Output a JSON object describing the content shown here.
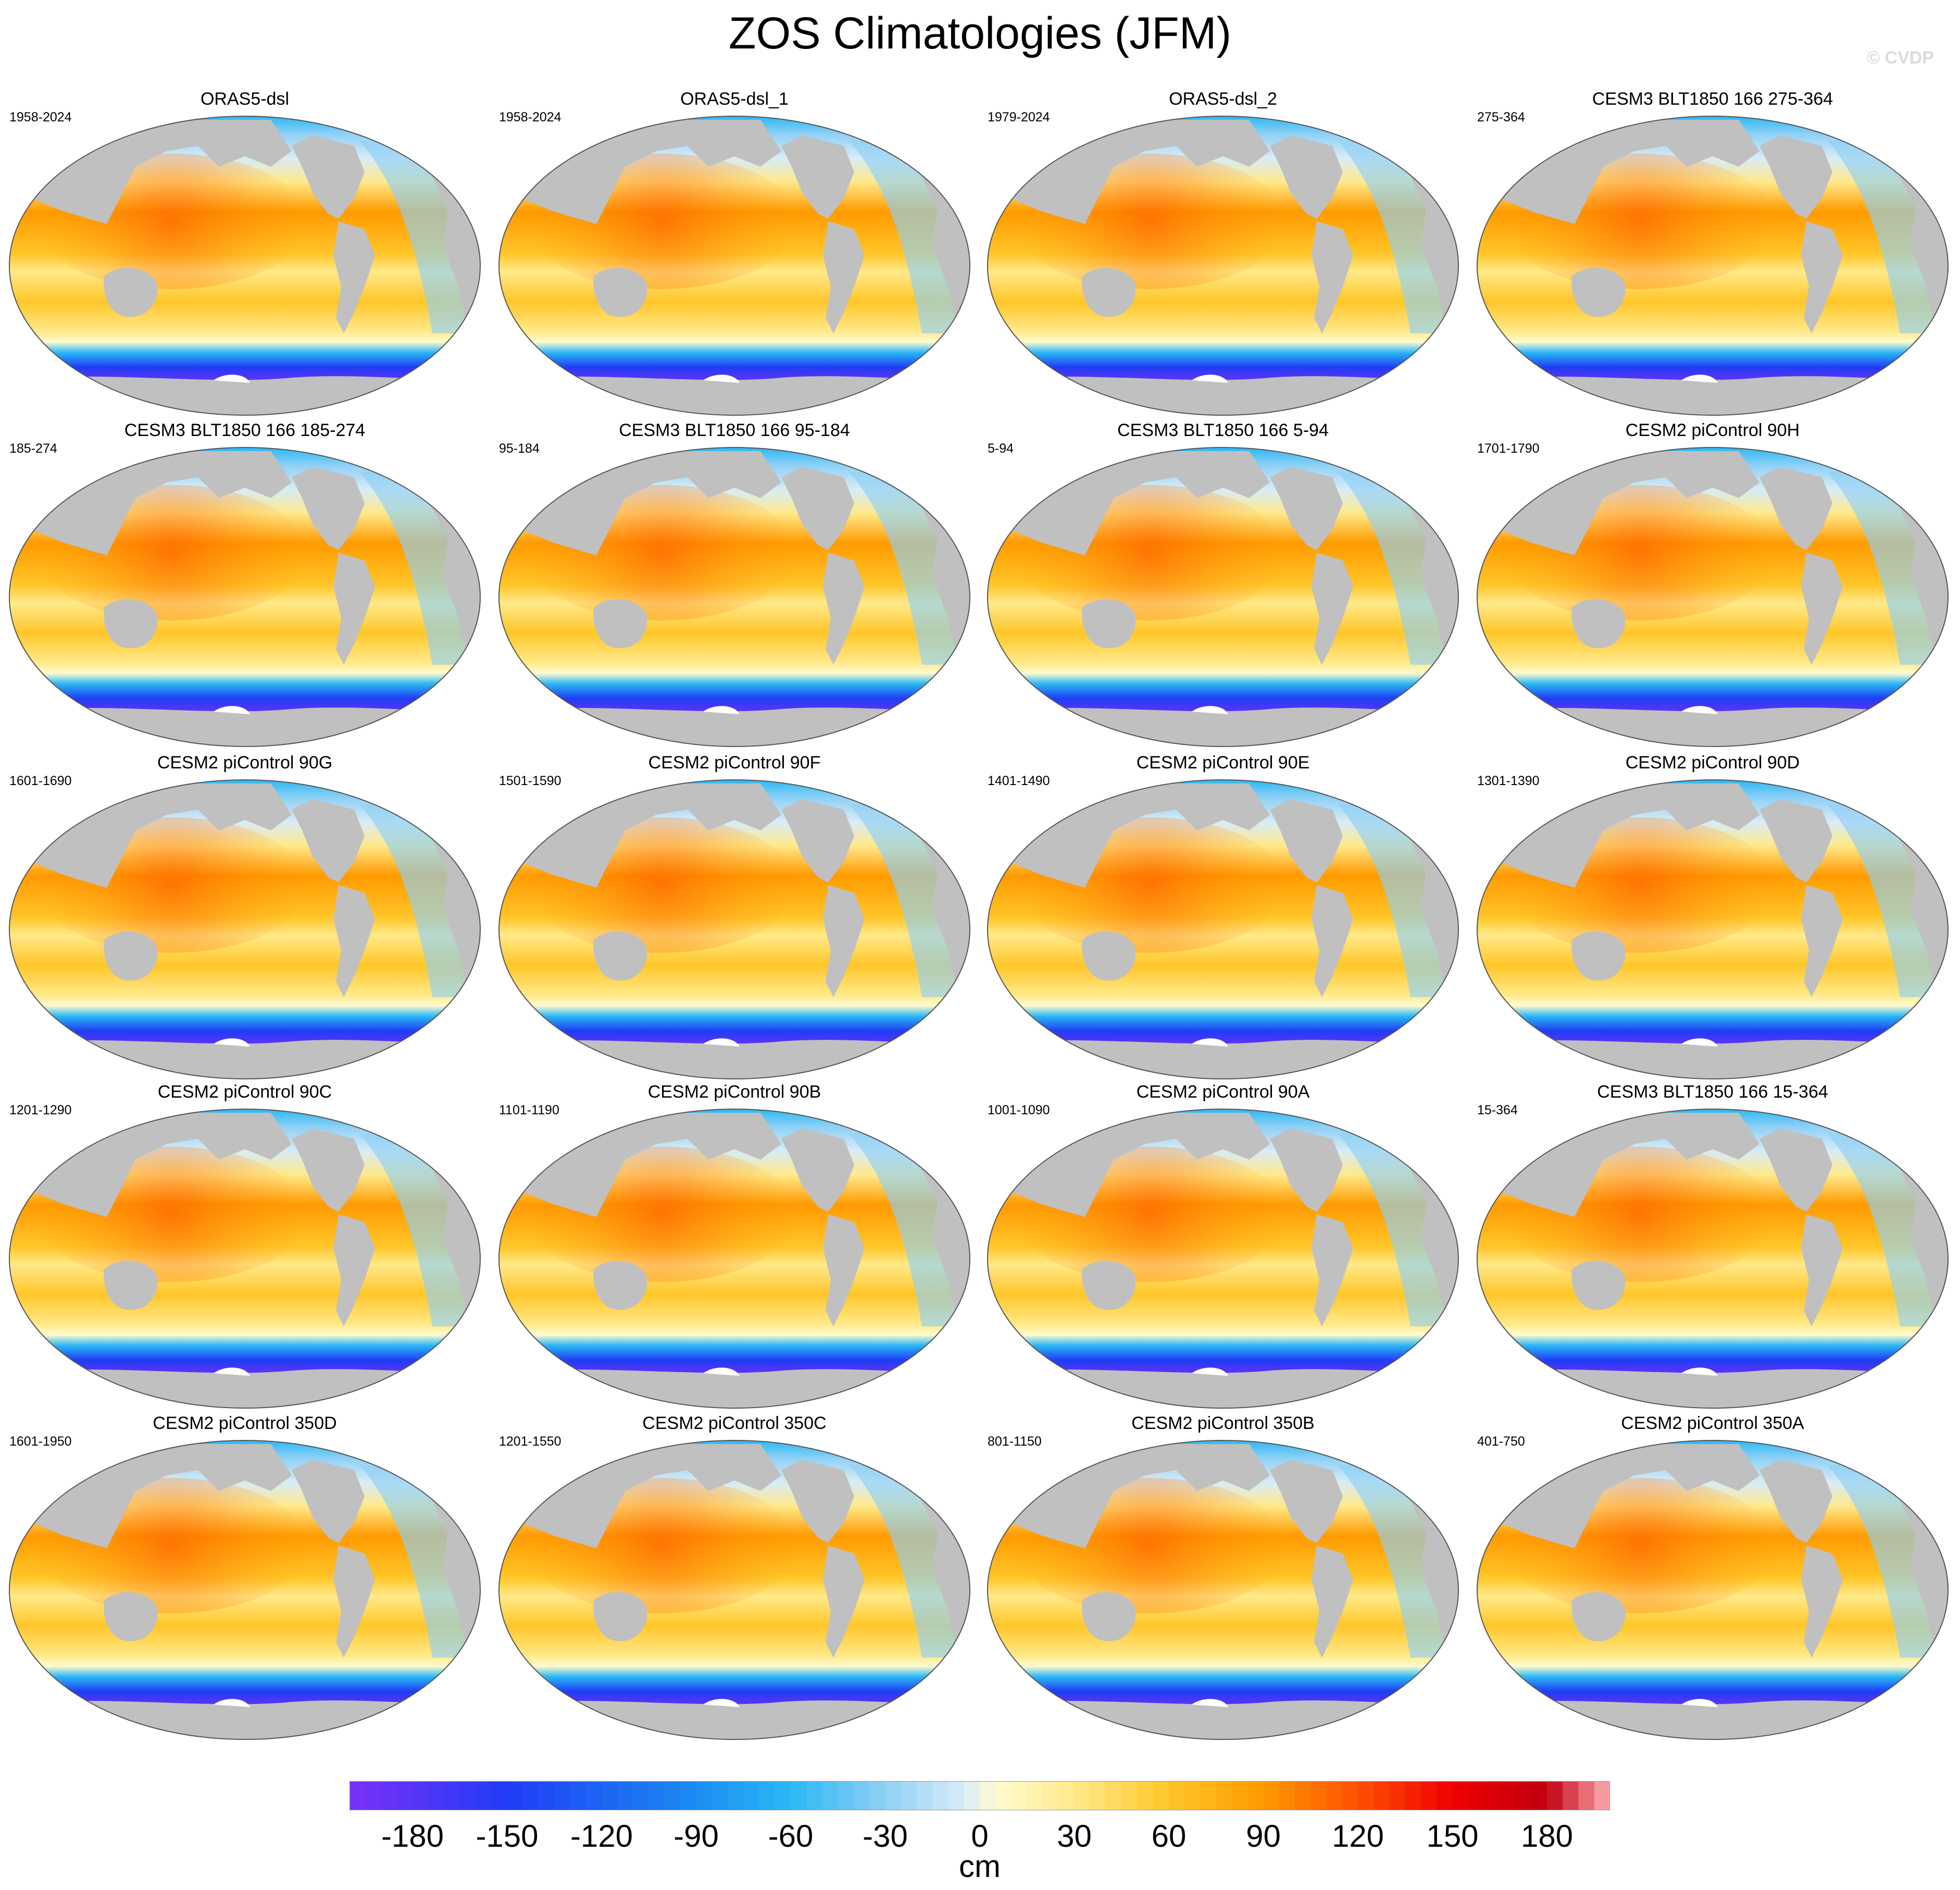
{
  "title": "ZOS Climatologies (JFM)",
  "credit": "© CVDP",
  "panels": [
    {
      "title": "ORAS5-dsl",
      "period": "1958-2024"
    },
    {
      "title": "ORAS5-dsl_1",
      "period": "1958-2024"
    },
    {
      "title": "ORAS5-dsl_2",
      "period": "1979-2024"
    },
    {
      "title": "CESM3 BLT1850 166 275-364",
      "period": "275-364"
    },
    {
      "title": "CESM3 BLT1850 166 185-274",
      "period": "185-274"
    },
    {
      "title": "CESM3 BLT1850 166 95-184",
      "period": "95-184"
    },
    {
      "title": "CESM3 BLT1850 166 5-94",
      "period": "5-94"
    },
    {
      "title": "CESM2 piControl 90H",
      "period": "1701-1790"
    },
    {
      "title": "CESM2 piControl 90G",
      "period": "1601-1690"
    },
    {
      "title": "CESM2 piControl 90F",
      "period": "1501-1590"
    },
    {
      "title": "CESM2 piControl 90E",
      "period": "1401-1490"
    },
    {
      "title": "CESM2 piControl 90D",
      "period": "1301-1390"
    },
    {
      "title": "CESM2 piControl 90C",
      "period": "1201-1290"
    },
    {
      "title": "CESM2 piControl 90B",
      "period": "1101-1190"
    },
    {
      "title": "CESM2 piControl 90A",
      "period": "1001-1090"
    },
    {
      "title": "CESM3 BLT1850 166 15-364",
      "period": "15-364"
    },
    {
      "title": "CESM2 piControl 350D",
      "period": "1601-1950"
    },
    {
      "title": "CESM2 piControl 350C",
      "period": "1201-1550"
    },
    {
      "title": "CESM2 piControl 350B",
      "period": "801-1150"
    },
    {
      "title": "CESM2 piControl 350A",
      "period": "401-750"
    }
  ],
  "colorbar": {
    "labels": [
      "-180",
      "-150",
      "-120",
      "-90",
      "-60",
      "-30",
      "0",
      "30",
      "60",
      "90",
      "120",
      "150",
      "180"
    ],
    "min": -200,
    "max": 200,
    "units": "cm",
    "colors": {
      "neg_200": "#7b2ff7",
      "neg_150": "#1f3df5",
      "neg_90": "#1c8cf2",
      "neg_60": "#2ab8f5",
      "neg_30": "#8fd0f5",
      "neg_5": "#d8ecf7",
      "pos_5": "#fffbd0",
      "pos_30": "#ffe98a",
      "pos_60": "#ffc629",
      "pos_90": "#ff9a00",
      "pos_120": "#ff5000",
      "pos_150": "#ef0000",
      "pos_180": "#c00010",
      "pos_200": "#ffb0b4"
    },
    "land": "#c0c0c0"
  }
}
